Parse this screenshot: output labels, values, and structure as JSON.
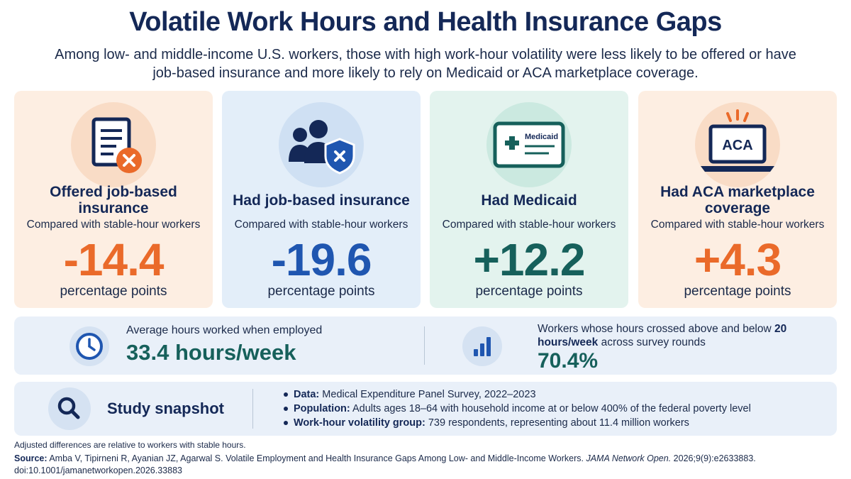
{
  "title": "Volatile Work Hours and Health Insurance Gaps",
  "subtitle": "Among low- and middle-income U.S. workers, those with high work-hour volatility were less likely to be offered or have job-based insurance and more likely to rely on Medicaid or ACA marketplace coverage.",
  "cards": [
    {
      "title": "Offered job-based insurance",
      "comparison": "Compared with stable-hour workers",
      "value": "-14.4",
      "unit": "percentage points",
      "icon": "document-x-icon",
      "bg": "#fdeee2",
      "accent": "#ea6a2a"
    },
    {
      "title": "Had job-based insurance",
      "comparison": "Compared with stable-hour workers",
      "value": "-19.6",
      "unit": "percentage points",
      "icon": "people-shield-icon",
      "bg": "#e3eef9",
      "accent": "#1f56b0"
    },
    {
      "title": "Had Medicaid",
      "comparison": "Compared with stable-hour workers",
      "value": "+12.2",
      "unit": "percentage points",
      "icon": "medicaid-card-icon",
      "icon_text": "Medicaid",
      "bg": "#e3f3ee",
      "accent": "#16605b"
    },
    {
      "title": "Had ACA marketplace coverage",
      "comparison": "Compared with stable-hour workers",
      "value": "+4.3",
      "unit": "percentage points",
      "icon": "aca-laptop-icon",
      "icon_text": "ACA",
      "bg": "#fdeee2",
      "accent": "#ea6a2a"
    }
  ],
  "stats": {
    "hours_label": "Average hours worked when employed",
    "hours_value": "33.4 hours/week",
    "cross_label_pre": "Workers whose hours crossed above and below",
    "cross_label_bold": "20 hours/week",
    "cross_label_post": "across survey rounds",
    "cross_value": "70.4%"
  },
  "snapshot": {
    "title": "Study snapshot",
    "items": [
      {
        "label": "Data:",
        "text": "Medical Expenditure Panel Survey, 2022–2023"
      },
      {
        "label": "Population:",
        "text": "Adults ages 18–64 with household income at or below 400% of the federal poverty level"
      },
      {
        "label": "Work-hour volatility group:",
        "text": "739 respondents, representing about 11.4 million workers"
      }
    ]
  },
  "footnote": "Adjusted differences are relative to workers with stable hours.",
  "source": {
    "label": "Source:",
    "text_pre": "Amba V, Tipirneni R, Ayanian JZ, Agarwal S. Volatile Employment and Health Insurance Gaps Among Low- and Middle-Income Workers.",
    "journal": "JAMA Network Open.",
    "text_post": "2026;9(9):e2633883. doi:10.1001/jamanetworkopen.2026.33883"
  },
  "colors": {
    "navy": "#142857",
    "orange": "#ea6a2a",
    "blue": "#1f56b0",
    "teal": "#16605b"
  }
}
